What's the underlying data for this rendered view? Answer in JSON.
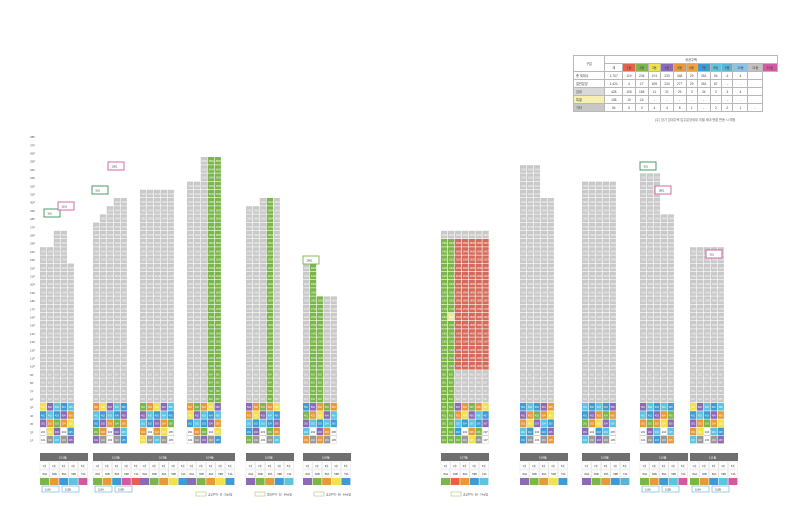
{
  "summary": {
    "header_label": "구분",
    "group_label": "공공주택",
    "col_total": "계",
    "columns": [
      "1동",
      "2동",
      "3동",
      "4동",
      "5동",
      "6동",
      "7동",
      "8동",
      "9동",
      "10동",
      "11동",
      "12동"
    ],
    "column_colors": [
      "#e8604a",
      "#7ab648",
      "#f2e14a",
      "#8b6bb8",
      "#e89a3a",
      "#f4a13c",
      "#3e9bd4",
      "#5cc3e0",
      "#58b4d8",
      "#8cc3e8",
      "#c2c2c2",
      "#d15aa0"
    ],
    "rows": [
      {
        "label": "총 세대수",
        "values": [
          "1,707",
          "119",
          "236",
          "474",
          "233",
          "348",
          "29",
          "351",
          "94",
          "4",
          "4",
          ""
        ]
      },
      {
        "label": "일반분양",
        "values": [
          "1,421",
          "4",
          "27",
          "409",
          "234",
          "277",
          "29",
          "351",
          "87",
          "-",
          "-",
          ""
        ]
      },
      {
        "label": "임대",
        "values": [
          "428",
          "105",
          "185",
          "11",
          "21",
          "29",
          "3",
          "34",
          "3",
          "3",
          "4",
          ""
        ]
      },
      {
        "label": "특별",
        "values": [
          "108",
          "10",
          "24",
          "-",
          "-",
          "-",
          "-",
          "-",
          "-",
          "-",
          "-",
          ""
        ]
      },
      {
        "label": "기타",
        "values": [
          "54",
          "5",
          "3",
          "4",
          "4",
          "8",
          "1",
          "-",
          "2",
          "2",
          "1",
          "-"
        ]
      }
    ],
    "row_highlight_colors": [
      "",
      "",
      "#d9d9d9",
      "#f6efb0",
      "#c7c7c7"
    ],
    "note": "(주) 장기 임대주택 입주분양세대 개별 세대 현황 변동 시 예정"
  },
  "floors_left": [
    "38F",
    "37F",
    "36F",
    "35F",
    "34F",
    "33F",
    "32F",
    "31F",
    "30F",
    "29F",
    "28F",
    "27F",
    "26F",
    "25F",
    "24F",
    "23F",
    "22F",
    "21F",
    "20F",
    "19F",
    "18F",
    "17F",
    "16F",
    "15F",
    "14F",
    "13F",
    "12F",
    "11F",
    "10F",
    "9F",
    "8F",
    "7F",
    "6F",
    "5F",
    "4F",
    "3F",
    "2F",
    "1F"
  ],
  "callouts": [
    "301",
    "1101",
    "501",
    "1901",
    "301",
    "1801",
    "301",
    "2801"
  ],
  "legend": [
    {
      "label": "공공주택 - 분 - 50㎡형"
    },
    {
      "label": "임대주택 - 52 - 84㎡형"
    },
    {
      "label": "공공주택 - 59 - 64㎡형"
    },
    {
      "label": "공공주택 - 59 - 74㎡형"
    }
  ],
  "buildings": [
    {
      "name": "101동",
      "plan_colors": [
        "#7ab648",
        "#e89a3a",
        "#3e9bd4",
        "#5cc3e0",
        "#d15aa0",
        "#e8604a"
      ],
      "tags": [
        "110A",
        "110B"
      ]
    },
    {
      "name": "102동",
      "plan_colors": [
        "#7ab648",
        "#e89a3a",
        "#3e9bd4",
        "#d15aa0",
        "#e8604a",
        "#8b6bb8"
      ],
      "tags": [
        "110A",
        "110B"
      ]
    },
    {
      "name": "103동",
      "plan_colors": [
        "#8b6bb8",
        "#7ab648",
        "#e89a3a",
        "#f2e14a",
        "#3e9bd4",
        "#e8604a"
      ],
      "tags": []
    },
    {
      "name": "104동",
      "plan_colors": [
        "#8b6bb8",
        "#7ab648",
        "#e89a3a",
        "#f2e14a",
        "#3e9bd4",
        "#58b4d8"
      ],
      "tags": []
    },
    {
      "name": "105동",
      "plan_colors": [
        "#8b6bb8",
        "#7ab648",
        "#e89a3a",
        "#3e9bd4",
        "#5cc3e0",
        "#58b4d8"
      ],
      "tags": []
    },
    {
      "name": "106동",
      "plan_colors": [
        "#8b6bb8",
        "#7ab648",
        "#e89a3a",
        "#f2e14a",
        "#3e9bd4",
        "#e8604a"
      ],
      "tags": []
    },
    {
      "name": "107동",
      "plan_colors": [
        "#7ab648",
        "#e8604a",
        "#e89a3a",
        "#3e9bd4",
        "#5cc3e0",
        "#8b6bb8"
      ],
      "tags": []
    },
    {
      "name": "108동",
      "plan_colors": [
        "#8b6bb8",
        "#7ab648",
        "#e89a3a",
        "#f2e14a",
        "#3e9bd4",
        "#e8604a"
      ],
      "tags": []
    },
    {
      "name": "109동",
      "plan_colors": [
        "#8b6bb8",
        "#7ab648",
        "#e89a3a",
        "#3e9bd4",
        "#58b4d8",
        "#5cc3e0"
      ],
      "tags": []
    },
    {
      "name": "110동",
      "plan_colors": [
        "#7ab648",
        "#e89a3a",
        "#3e9bd4",
        "#5cc3e0",
        "#d15aa0",
        "#e8604a"
      ],
      "tags": [
        "110A",
        "110B"
      ]
    },
    {
      "name": "111동",
      "plan_colors": [
        "#7ab648",
        "#e89a3a",
        "#3e9bd4",
        "#5cc3e0",
        "#d15aa0",
        "#e8604a"
      ],
      "tags": [
        "110A",
        "110B"
      ]
    }
  ],
  "plan_row_labels": [
    "1호",
    "2호",
    "3호",
    "4호",
    "5호"
  ],
  "plan_row2_labels": [
    "84A",
    "84B",
    "59A",
    "59B",
    "74A"
  ]
}
